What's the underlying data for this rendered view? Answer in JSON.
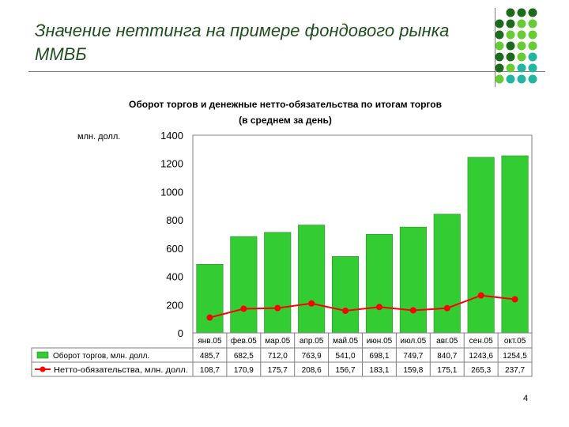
{
  "slide": {
    "title": "Значение неттинга на примере фондового рынка ММВБ",
    "page_number": "4"
  },
  "colors": {
    "title": "#1f4e1f",
    "bar": "#33cc33",
    "line": "#ff0000",
    "dot_dark": "#1a6b1a",
    "dot_green": "#66cc33",
    "dot_teal": "#22b5a0"
  },
  "chart_data": {
    "type": "bar",
    "title": "Оборот торгов и денежные нетто-обязательства по итогам торгов (в среднем за день)",
    "title_lines": [
      "Оборот торгов и денежные нетто-обязательства по итогам торгов",
      "(в среднем за день)"
    ],
    "ylabel": "млн. долл.",
    "ylim": [
      0,
      1400
    ],
    "yticks": [
      0,
      200,
      400,
      600,
      800,
      1000,
      1200,
      1400
    ],
    "grid": false,
    "legend": "table-bottom",
    "categories": [
      "янв.05",
      "фев.05",
      "мар.05",
      "апр.05",
      "май.05",
      "июн.05",
      "июл.05",
      "авг.05",
      "сен.05",
      "окт.05"
    ],
    "series": [
      {
        "name": "Оборот торгов, млн. долл.",
        "type": "bar",
        "values": [
          485.7,
          682.5,
          712.0,
          763.9,
          541.0,
          698.1,
          749.7,
          840.7,
          1243.6,
          1254.5
        ],
        "labels": [
          "485,7",
          "682,5",
          "712,0",
          "763,9",
          "541,0",
          "698,1",
          "749,7",
          "840,7",
          "1243,6",
          "1254,5"
        ]
      },
      {
        "name": "Нетто-обязательства, млн. долл.",
        "type": "line",
        "values": [
          108.7,
          170.9,
          175.7,
          208.6,
          156.7,
          183.1,
          159.8,
          175.1,
          265.3,
          237.7
        ],
        "labels": [
          "108,7",
          "170,9",
          "175,7",
          "208,6",
          "156,7",
          "183,1",
          "159,8",
          "175,1",
          "265,3",
          "237,7"
        ]
      }
    ]
  }
}
